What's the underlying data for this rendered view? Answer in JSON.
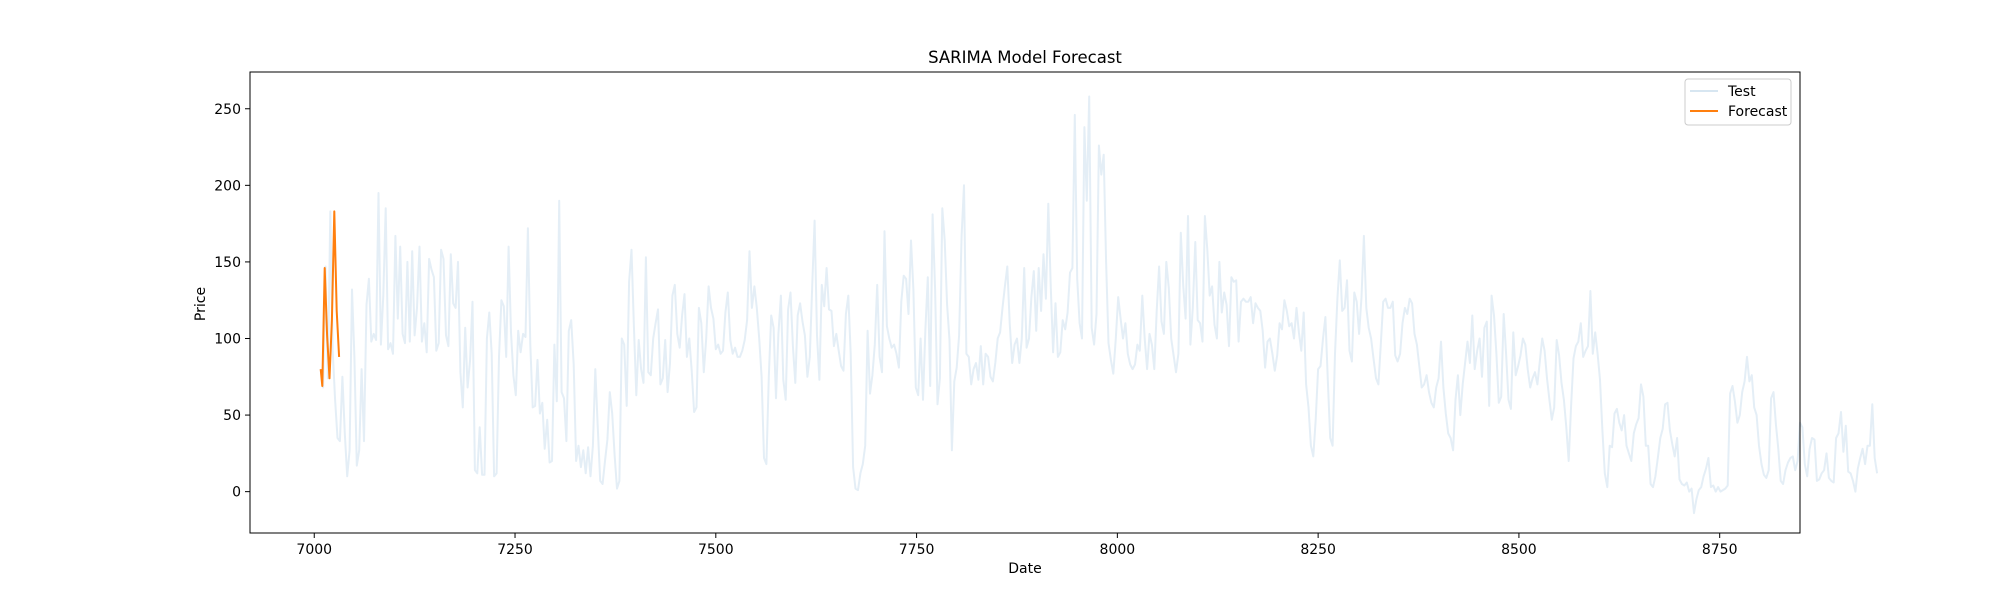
{
  "chart_data": {
    "type": "line",
    "title": "SARIMA Model Forecast",
    "xlabel": "Date",
    "ylabel": "Price",
    "xlim": [
      6920,
      8850
    ],
    "ylim": [
      -27,
      274
    ],
    "xticks": [
      7000,
      7250,
      7500,
      7750,
      8000,
      8250,
      8500,
      8750
    ],
    "yticks": [
      0,
      50,
      100,
      150,
      200,
      250
    ],
    "grid": false,
    "legend": "upper-right",
    "series": [
      {
        "name": "Test",
        "color": "#1f77b4",
        "opacity": 0.12,
        "x_start": 7008,
        "x_step": 3,
        "values": [
          80,
          68,
          147,
          74,
          183,
          92,
          60,
          35,
          33,
          75,
          38,
          10,
          27,
          132,
          88,
          17,
          27,
          80,
          33,
          122,
          139,
          98,
          103,
          99,
          195,
          96,
          128,
          185,
          93,
          97,
          90,
          167,
          113,
          160,
          103,
          97,
          150,
          98,
          157,
          102,
          120,
          160,
          98,
          110,
          91,
          152,
          145,
          140,
          92,
          97,
          158,
          152,
          102,
          95,
          155,
          123,
          120,
          150,
          78,
          55,
          107,
          68,
          86,
          124,
          14,
          12,
          42,
          11,
          11,
          100,
          117,
          90,
          10,
          12,
          88,
          125,
          121,
          88,
          160,
          104,
          76,
          63,
          105,
          91,
          103,
          101,
          172,
          96,
          55,
          56,
          86,
          51,
          58,
          28,
          47,
          19,
          20,
          96,
          59,
          190,
          65,
          61,
          33,
          105,
          112,
          83,
          20,
          30,
          16,
          27,
          12,
          29,
          10,
          30,
          80,
          43,
          7,
          5,
          20,
          34,
          65,
          51,
          24,
          2,
          7,
          100,
          96,
          56,
          137,
          158,
          108,
          63,
          99,
          80,
          71,
          153,
          78,
          76,
          100,
          110,
          119,
          70,
          74,
          99,
          65,
          84,
          128,
          135,
          103,
          94,
          115,
          129,
          88,
          100,
          79,
          52,
          55,
          120,
          110,
          78,
          100,
          134,
          120,
          113,
          93,
          96,
          90,
          92,
          117,
          130,
          99,
          90,
          94,
          88,
          88,
          92,
          99,
          112,
          157,
          120,
          134,
          120,
          100,
          75,
          22,
          18,
          75,
          115,
          107,
          61,
          103,
          128,
          73,
          60,
          119,
          130,
          95,
          71,
          115,
          123,
          111,
          102,
          75,
          88,
          134,
          177,
          102,
          73,
          135,
          121,
          146,
          119,
          118,
          95,
          103,
          92,
          82,
          79,
          116,
          128,
          90,
          16,
          2,
          1,
          12,
          18,
          30,
          105,
          64,
          76,
          96,
          135,
          88,
          78,
          170,
          108,
          100,
          94,
          96,
          90,
          81,
          124,
          141,
          139,
          116,
          164,
          132,
          68,
          63,
          100,
          60,
          106,
          140,
          69,
          181,
          132,
          57,
          74,
          185,
          164,
          122,
          99,
          27,
          72,
          81,
          102,
          167,
          200,
          90,
          88,
          70,
          80,
          84,
          73,
          95,
          70,
          90,
          88,
          75,
          72,
          84,
          100,
          104,
          120,
          134,
          147,
          110,
          84,
          96,
          100,
          84,
          100,
          146,
          94,
          100,
          127,
          144,
          105,
          146,
          118,
          155,
          126,
          188,
          135,
          91,
          123,
          88,
          91,
          112,
          106,
          117,
          143,
          146,
          246,
          139,
          110,
          100,
          238,
          190,
          258,
          107,
          96,
          116,
          226,
          207,
          220,
          150,
          97,
          86,
          77,
          100,
          127,
          113,
          100,
          110,
          90,
          83,
          80,
          83,
          96,
          92,
          128,
          100,
          80,
          103,
          96,
          80,
          118,
          147,
          111,
          103,
          150,
          133,
          100,
          89,
          78,
          90,
          169,
          135,
          113,
          180,
          96,
          120,
          163,
          112,
          110,
          98,
          180,
          158,
          128,
          134,
          109,
          100,
          150,
          117,
          130,
          122,
          95,
          140,
          137,
          138,
          98,
          124,
          126,
          124,
          124,
          127,
          110,
          123,
          120,
          118,
          105,
          81,
          98,
          100,
          90,
          79,
          89,
          110,
          106,
          125,
          118,
          108,
          110,
          100,
          120,
          104,
          92,
          117,
          70,
          55,
          30,
          23,
          47,
          80,
          82,
          100,
          114,
          73,
          35,
          30,
          90,
          126,
          151,
          118,
          120,
          138,
          92,
          85,
          130,
          124,
          103,
          127,
          167,
          120,
          107,
          100,
          87,
          74,
          70,
          96,
          124,
          126,
          120,
          120,
          124,
          89,
          85,
          90,
          110,
          120,
          116,
          126,
          123,
          103,
          96,
          82,
          68,
          70,
          76,
          65,
          58,
          55,
          68,
          74,
          98,
          68,
          51,
          38,
          35,
          27,
          60,
          76,
          50,
          70,
          84,
          98,
          84,
          115,
          80,
          92,
          100,
          75,
          107,
          111,
          56,
          128,
          115,
          90,
          58,
          62,
          116,
          90,
          60,
          54,
          104,
          76,
          82,
          89,
          100,
          96,
          80,
          68,
          74,
          78,
          70,
          85,
          100,
          92,
          74,
          60,
          47,
          55,
          99,
          89,
          71,
          60,
          42,
          20,
          56,
          87,
          95,
          98,
          110,
          88,
          92,
          95,
          131,
          90,
          104,
          90,
          73,
          40,
          12,
          3,
          30,
          29,
          51,
          54,
          45,
          40,
          50,
          30,
          25,
          20,
          38,
          44,
          48,
          70,
          62,
          30,
          30,
          5,
          3,
          10,
          22,
          35,
          41,
          57,
          58,
          40,
          31,
          23,
          35,
          8,
          5,
          4,
          6,
          0,
          2,
          -14,
          -5,
          1,
          3,
          10,
          15,
          22,
          3,
          4,
          0,
          3,
          0,
          1,
          2,
          4,
          64,
          69,
          59,
          45,
          50,
          65,
          72,
          88,
          72,
          76,
          55,
          50,
          30,
          18,
          11,
          9,
          14,
          61,
          65,
          44,
          28,
          7,
          5,
          14,
          19,
          22,
          23,
          14,
          20,
          45,
          42,
          18,
          10,
          28,
          35,
          34,
          7,
          8,
          12,
          14,
          25,
          9,
          7,
          6,
          35,
          38,
          52,
          26,
          43,
          13,
          12,
          7,
          0,
          15,
          22,
          28,
          18,
          30,
          30,
          57,
          22,
          12
        ]
      },
      {
        "name": "Forecast",
        "color": "#ff7f0e",
        "opacity": 1,
        "x": [
          7008,
          7010,
          7013,
          7016,
          7019,
          7022,
          7025,
          7028,
          7031
        ],
        "values": [
          80,
          69,
          146,
          102,
          74,
          112,
          183,
          118,
          88
        ]
      }
    ]
  }
}
